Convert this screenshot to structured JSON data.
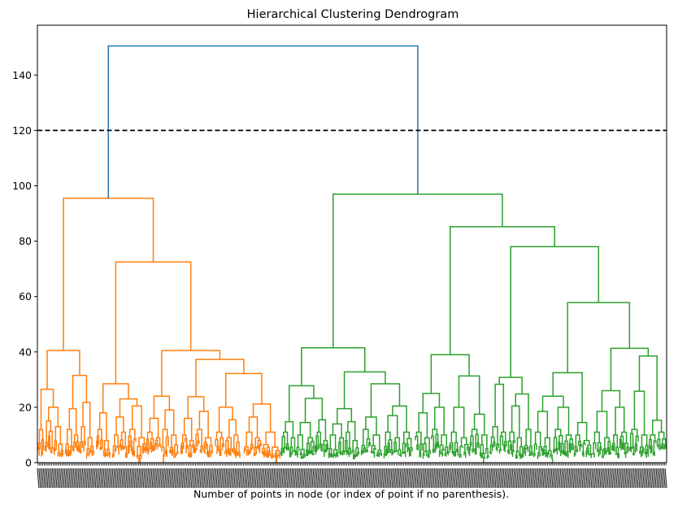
{
  "chart_data": {
    "type": "dendrogram",
    "title": "Hierarchical Clustering Dendrogram",
    "xlabel": "Number of points in node (or index of point if no parenthesis).",
    "ylabel": "",
    "ylim": [
      0,
      158
    ],
    "yticks": [
      0,
      20,
      40,
      60,
      80,
      100,
      120,
      140
    ],
    "grid": false,
    "cut_line": {
      "y": 120,
      "style": "dashed",
      "color": "#000000"
    },
    "colors": {
      "root": "#1f77b4",
      "cluster_1": "#ff7f0e",
      "cluster_2": "#2ca02c"
    },
    "root_merge_height": 150.5,
    "clusters": [
      {
        "name": "cluster_1",
        "color": "#ff7f0e",
        "merge_height": 95.5,
        "major_merges": [
          40.5,
          72.5,
          40.5,
          37.3,
          32.2,
          31.5,
          28.5,
          26.5,
          24.0,
          23.8,
          23.0,
          21.8,
          21.2
        ]
      },
      {
        "name": "cluster_2",
        "color": "#2ca02c",
        "merge_height": 97.0,
        "major_merges": [
          41.5,
          85.2,
          78.0,
          57.8,
          41.3,
          39.0,
          38.5,
          32.8,
          32.5,
          31.3,
          30.8,
          28.3,
          27.5,
          25.8,
          24.8
        ]
      }
    ],
    "leaf_count_estimate": 420
  }
}
